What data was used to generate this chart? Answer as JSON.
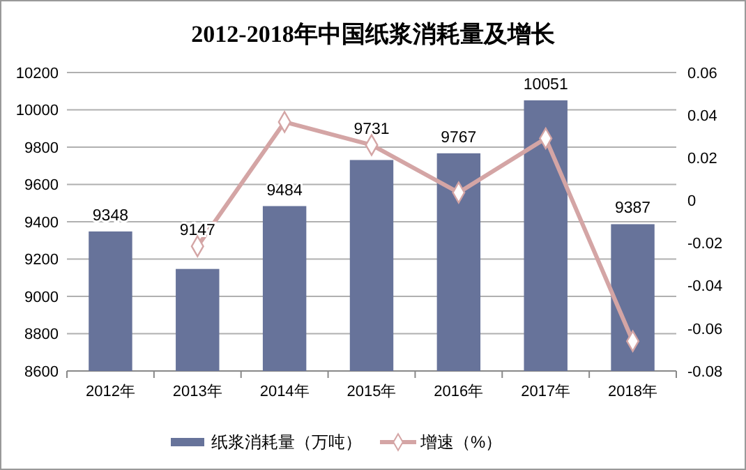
{
  "chart_data": {
    "type": "bar",
    "title": "2012-2018年中国纸浆消耗量及增长",
    "categories": [
      "2012年",
      "2013年",
      "2014年",
      "2015年",
      "2016年",
      "2017年",
      "2018年"
    ],
    "series": [
      {
        "name": "纸浆消耗量（万吨）",
        "color": "#67739a",
        "values": [
          9348,
          9147,
          9484,
          9731,
          9767,
          10051,
          9387
        ]
      },
      {
        "name": "增速（%）",
        "type": "line",
        "axis": "y2",
        "color": "#d4a5a5",
        "marker": "diamond",
        "values": [
          null,
          -0.0215,
          0.0368,
          0.026,
          0.0037,
          0.0291,
          -0.066
        ]
      }
    ],
    "ylim": [
      8600,
      10200
    ],
    "yticks": [
      8600,
      8800,
      9000,
      9200,
      9400,
      9600,
      9800,
      10000,
      10200
    ],
    "y2lim": [
      -0.08,
      0.06
    ],
    "y2ticks": [
      {
        "value": -0.08,
        "label": "-0.08"
      },
      {
        "value": -0.06,
        "label": "-0.06"
      },
      {
        "value": -0.04,
        "label": "-0.04"
      },
      {
        "value": -0.02,
        "label": "-0.02"
      },
      {
        "value": 0,
        "label": "0"
      },
      {
        "value": 0.02,
        "label": "0.02"
      },
      {
        "value": 0.04,
        "label": "0.04"
      },
      {
        "value": 0.06,
        "label": "0.06"
      }
    ],
    "grid": "y",
    "legend": "bottom",
    "value_labels": [
      "9348",
      "9147",
      "9484",
      "9731",
      "9767",
      "10051",
      "9387"
    ]
  }
}
